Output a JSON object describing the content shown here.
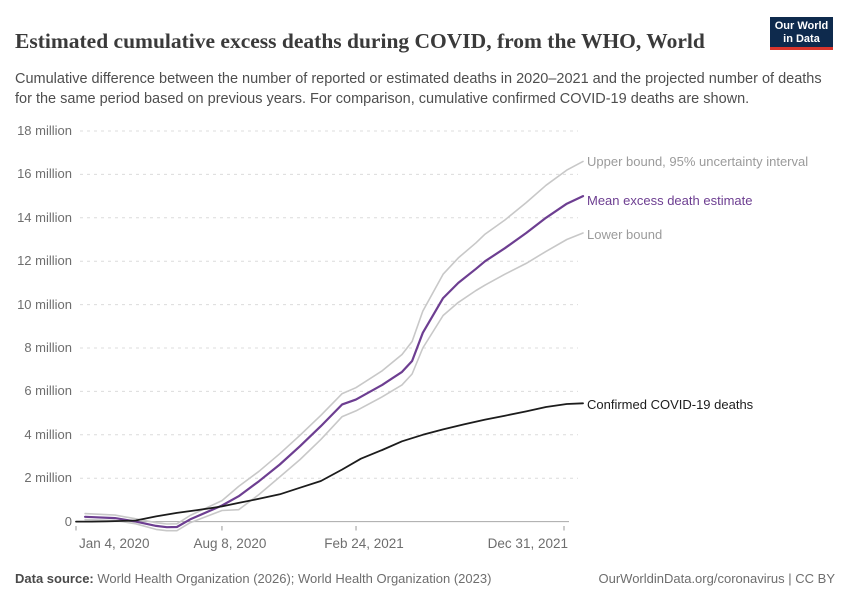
{
  "header": {
    "title": "Estimated cumulative excess deaths during COVID, from the WHO, World",
    "logo": {
      "line1": "Our World",
      "line2": "in Data",
      "bg_color": "#0e2a4d",
      "accent_color": "#d9352c"
    }
  },
  "subtitle": "Cumulative difference between the number of reported or estimated deaths in 2020–2021 and the projected number of deaths for the same period based on previous years. For comparison, cumulative confirmed COVID-19 deaths are shown.",
  "chart_data": {
    "type": "line",
    "title": "Estimated cumulative excess deaths during COVID, from the WHO, World",
    "x_range": [
      "Jan 4, 2020",
      "Dec 31, 2021"
    ],
    "ylim": [
      -0.6,
      18
    ],
    "grid": "dashed-horizontal",
    "legend_position": "right-of-line-ends",
    "y_axis": {
      "unit": "million",
      "ticks": [
        {
          "label": "18 million",
          "value": 18
        },
        {
          "label": "16 million",
          "value": 16
        },
        {
          "label": "14 million",
          "value": 14
        },
        {
          "label": "12 million",
          "value": 12
        },
        {
          "label": "10 million",
          "value": 10
        },
        {
          "label": "8 million",
          "value": 8
        },
        {
          "label": "6 million",
          "value": 6
        },
        {
          "label": "4 million",
          "value": 4
        },
        {
          "label": "2 million",
          "value": 2
        },
        {
          "label": "0",
          "value": 0
        }
      ]
    },
    "x_axis": {
      "note": "t is the fractional position along the time axis from Jan 4, 2020 to the end of the plotted lines",
      "ticks": [
        {
          "label": "Jan 4, 2020",
          "t": 0.0,
          "align": "left"
        },
        {
          "label": "Aug 8, 2020",
          "t": 0.2879,
          "align": "center"
        },
        {
          "label": "Feb 24, 2021",
          "t": 0.5523,
          "align": "center"
        },
        {
          "label": "Dec 31, 2021",
          "t": 0.9625,
          "align": "right"
        }
      ]
    },
    "series": [
      {
        "name": "Upper bound, 95% uncertainty interval",
        "color": "#c8c8c8",
        "label_color": "#9b9b9b",
        "width": 1.6,
        "points": [
          [
            0.018,
            0.37
          ],
          [
            0.077,
            0.3
          ],
          [
            0.118,
            0.13
          ],
          [
            0.158,
            -0.05
          ],
          [
            0.179,
            -0.11
          ],
          [
            0.199,
            -0.1
          ],
          [
            0.225,
            0.28
          ],
          [
            0.288,
            0.97
          ],
          [
            0.321,
            1.62
          ],
          [
            0.361,
            2.32
          ],
          [
            0.402,
            3.13
          ],
          [
            0.442,
            3.98
          ],
          [
            0.483,
            4.9
          ],
          [
            0.525,
            5.9
          ],
          [
            0.552,
            6.17
          ],
          [
            0.604,
            6.95
          ],
          [
            0.643,
            7.7
          ],
          [
            0.663,
            8.3
          ],
          [
            0.684,
            9.7
          ],
          [
            0.724,
            11.4
          ],
          [
            0.754,
            12.15
          ],
          [
            0.789,
            12.85
          ],
          [
            0.807,
            13.25
          ],
          [
            0.846,
            13.9
          ],
          [
            0.888,
            14.7
          ],
          [
            0.927,
            15.5
          ],
          [
            0.968,
            16.2
          ],
          [
            1,
            16.6
          ]
        ]
      },
      {
        "name": "Mean excess death estimate",
        "color": "#6d3e91",
        "label_color": "#6d3e91",
        "width": 2.2,
        "points": [
          [
            0.018,
            0.22
          ],
          [
            0.077,
            0.16
          ],
          [
            0.118,
            0.0
          ],
          [
            0.158,
            -0.2
          ],
          [
            0.179,
            -0.26
          ],
          [
            0.199,
            -0.25
          ],
          [
            0.225,
            0.1
          ],
          [
            0.288,
            0.74
          ],
          [
            0.321,
            1.17
          ],
          [
            0.361,
            1.86
          ],
          [
            0.402,
            2.63
          ],
          [
            0.442,
            3.48
          ],
          [
            0.483,
            4.4
          ],
          [
            0.525,
            5.4
          ],
          [
            0.552,
            5.62
          ],
          [
            0.604,
            6.3
          ],
          [
            0.643,
            6.9
          ],
          [
            0.663,
            7.4
          ],
          [
            0.684,
            8.7
          ],
          [
            0.724,
            10.3
          ],
          [
            0.754,
            11.0
          ],
          [
            0.789,
            11.65
          ],
          [
            0.807,
            12.0
          ],
          [
            0.846,
            12.6
          ],
          [
            0.888,
            13.3
          ],
          [
            0.927,
            14.0
          ],
          [
            0.968,
            14.65
          ],
          [
            1,
            15.0
          ]
        ]
      },
      {
        "name": "Lower bound",
        "color": "#c8c8c8",
        "label_color": "#9b9b9b",
        "width": 1.6,
        "points": [
          [
            0.018,
            0.09
          ],
          [
            0.077,
            0.05
          ],
          [
            0.118,
            -0.1
          ],
          [
            0.158,
            -0.36
          ],
          [
            0.179,
            -0.42
          ],
          [
            0.199,
            -0.42
          ],
          [
            0.225,
            -0.05
          ],
          [
            0.288,
            0.51
          ],
          [
            0.321,
            0.55
          ],
          [
            0.361,
            1.25
          ],
          [
            0.402,
            2.06
          ],
          [
            0.442,
            2.86
          ],
          [
            0.483,
            3.79
          ],
          [
            0.525,
            4.84
          ],
          [
            0.552,
            5.1
          ],
          [
            0.604,
            5.75
          ],
          [
            0.643,
            6.3
          ],
          [
            0.663,
            6.8
          ],
          [
            0.684,
            8.0
          ],
          [
            0.724,
            9.5
          ],
          [
            0.754,
            10.1
          ],
          [
            0.789,
            10.65
          ],
          [
            0.807,
            10.9
          ],
          [
            0.846,
            11.4
          ],
          [
            0.888,
            11.9
          ],
          [
            0.927,
            12.45
          ],
          [
            0.968,
            13.0
          ],
          [
            1,
            13.3
          ]
        ]
      },
      {
        "name": "Confirmed COVID-19 deaths",
        "color": "#1c1c1c",
        "label_color": "#1c1c1c",
        "width": 1.8,
        "points": [
          [
            0,
            0
          ],
          [
            0.03,
            0
          ],
          [
            0.06,
            0.01
          ],
          [
            0.118,
            0.05
          ],
          [
            0.158,
            0.24
          ],
          [
            0.199,
            0.4
          ],
          [
            0.239,
            0.53
          ],
          [
            0.266,
            0.62
          ],
          [
            0.288,
            0.7
          ],
          [
            0.321,
            0.86
          ],
          [
            0.361,
            1.05
          ],
          [
            0.402,
            1.26
          ],
          [
            0.442,
            1.56
          ],
          [
            0.483,
            1.87
          ],
          [
            0.525,
            2.4
          ],
          [
            0.562,
            2.9
          ],
          [
            0.604,
            3.3
          ],
          [
            0.643,
            3.7
          ],
          [
            0.684,
            4.0
          ],
          [
            0.724,
            4.25
          ],
          [
            0.765,
            4.48
          ],
          [
            0.807,
            4.7
          ],
          [
            0.846,
            4.88
          ],
          [
            0.888,
            5.08
          ],
          [
            0.927,
            5.28
          ],
          [
            0.968,
            5.42
          ],
          [
            1,
            5.45
          ]
        ]
      }
    ],
    "colors": {
      "gridline": "#dcdcdc",
      "zero_line": "#a8a8a8",
      "tick": "#999999",
      "axis_text": "#6e6e6e"
    }
  },
  "footer": {
    "source_label": "Data source:",
    "source_text": " World Health Organization (2026); World Health Organization (2023)",
    "link_text": "OurWorldinData.org/coronavirus | CC BY"
  }
}
